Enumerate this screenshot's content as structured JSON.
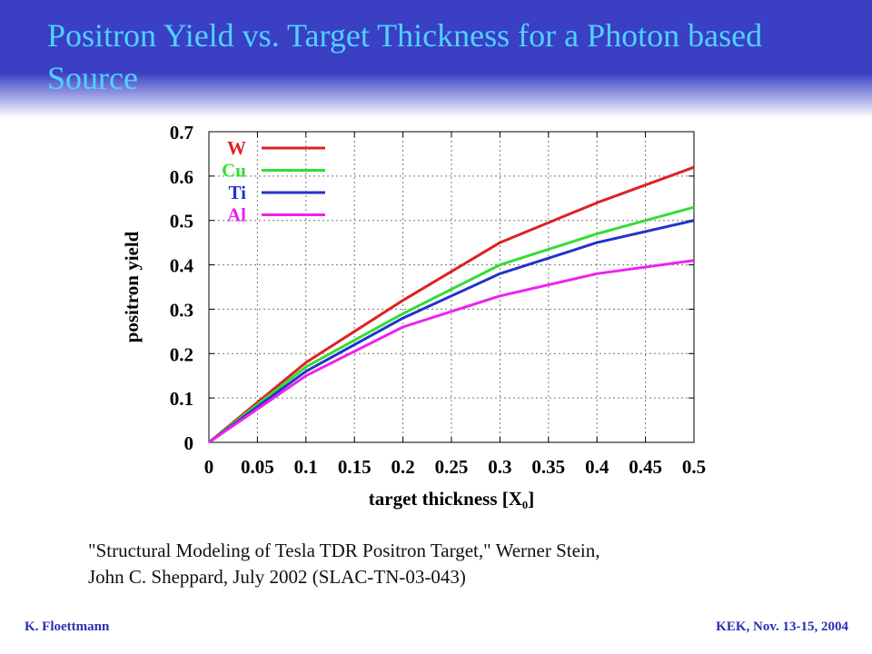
{
  "header": {
    "title": "Positron Yield vs. Target Thickness for a Photon based Source"
  },
  "chart_data": {
    "type": "line",
    "xlabel": "target thickness [X₀]",
    "ylabel": "positron yield",
    "xlim": [
      0,
      0.5
    ],
    "ylim": [
      0,
      0.7
    ],
    "xticks": [
      "0",
      "0.05",
      "0.1",
      "0.15",
      "0.2",
      "0.25",
      "0.3",
      "0.35",
      "0.4",
      "0.45",
      "0.5"
    ],
    "yticks": [
      "0",
      "0.1",
      "0.2",
      "0.3",
      "0.4",
      "0.5",
      "0.6",
      "0.7"
    ],
    "grid": true,
    "legend_position": "top-left",
    "x": [
      0,
      0.1,
      0.2,
      0.3,
      0.4,
      0.5
    ],
    "series": [
      {
        "name": "W",
        "color": "#dd2222",
        "values": [
          0,
          0.18,
          0.32,
          0.45,
          0.54,
          0.62
        ]
      },
      {
        "name": "Cu",
        "color": "#33dd33",
        "values": [
          0,
          0.17,
          0.29,
          0.4,
          0.47,
          0.53
        ]
      },
      {
        "name": "Ti",
        "color": "#2233cc",
        "values": [
          0,
          0.16,
          0.28,
          0.38,
          0.45,
          0.5
        ]
      },
      {
        "name": "Al",
        "color": "#ee22ee",
        "values": [
          0,
          0.15,
          0.26,
          0.33,
          0.38,
          0.41
        ]
      }
    ]
  },
  "citation": {
    "line1": "\"Structural Modeling of Tesla TDR Positron Target,\" Werner Stein,",
    "line2": "John C. Sheppard, July 2002 (SLAC-TN-03-043)"
  },
  "footer": {
    "author": "K. Floettmann",
    "event": "KEK, Nov. 13-15, 2004"
  },
  "colors": {
    "banner": "#3a3fc4",
    "title": "#4fd1ff",
    "footer": "#2a2fb0"
  }
}
